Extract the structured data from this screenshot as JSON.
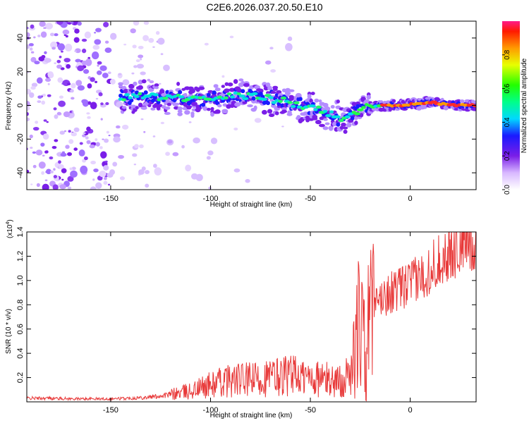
{
  "title": "C2E6.2026.037.20.50.E10",
  "chart_data": [
    {
      "type": "heatmap",
      "xlabel": "Height of straight line (km)",
      "ylabel": "Frequency (Hz)",
      "xlim": [
        -192,
        33
      ],
      "ylim": [
        -50,
        50
      ],
      "xticks": [
        -150,
        -100,
        -50,
        0
      ],
      "yticks": [
        -40,
        -20,
        0,
        20,
        40
      ],
      "colorbar": {
        "label": "Normalized spectral amplitude",
        "range": [
          0,
          1
        ],
        "ticks": [
          "0.0",
          "0.2",
          "0.4",
          "0.6",
          "0.8"
        ],
        "tick_values": [
          0,
          0.2,
          0.4,
          0.6,
          0.8
        ]
      },
      "ridge": {
        "x": [
          -145,
          -130,
          -115,
          -100,
          -85,
          -75,
          -65,
          -55,
          -45,
          -40,
          -35,
          -30,
          -25,
          -15,
          -5,
          5,
          10,
          15,
          25,
          33
        ],
        "frequency": [
          5,
          5,
          4,
          3,
          6,
          5,
          3,
          0,
          -3,
          -5,
          -8,
          -6,
          -2,
          0,
          0,
          1,
          2,
          1,
          0,
          0
        ]
      }
    },
    {
      "type": "line",
      "xlabel": "Height of straight line (km)",
      "ylabel": "SNR (10 * v/v)",
      "scale_label": "(x10",
      "scale_exp": "4",
      "xlim": [
        -192,
        33
      ],
      "ylim": [
        0,
        14000
      ],
      "xticks": [
        -150,
        -100,
        -50,
        0
      ],
      "ytick_values": [
        2000,
        4000,
        6000,
        8000,
        10000,
        12000,
        14000
      ],
      "ytick_labels": [
        "0.2",
        "0.4",
        "0.6",
        "0.8",
        "1.0",
        "1.2",
        "1.4"
      ],
      "color": "#e83a3a",
      "series": [
        {
          "x": [
            -192,
            -180,
            -170,
            -160,
            -150,
            -140,
            -130,
            -120,
            -110,
            -100,
            -90,
            -80,
            -70,
            -60,
            -55,
            -50,
            -45,
            -40,
            -35,
            -30,
            -28,
            -26,
            -24,
            -22,
            -20,
            -15,
            -10,
            -5,
            0,
            5,
            10,
            15,
            20,
            25,
            30,
            33
          ],
          "y": [
            300,
            300,
            250,
            250,
            250,
            300,
            400,
            600,
            900,
            1400,
            1800,
            1800,
            2000,
            2300,
            2000,
            2000,
            1900,
            1800,
            1700,
            2200,
            4000,
            6000,
            5500,
            5500,
            7000,
            8500,
            9000,
            9300,
            9800,
            10200,
            11000,
            11800,
            12200,
            12800,
            13200,
            13300
          ]
        }
      ]
    }
  ]
}
